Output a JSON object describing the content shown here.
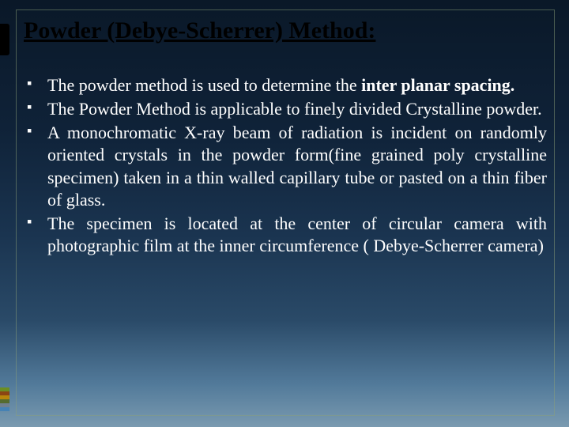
{
  "slide": {
    "title": "Powder (Debye-Scherrer) Method:",
    "bullets": [
      {
        "pre": "The powder method is used to determine the ",
        "bold": "inter planar spacing.",
        "post": ""
      },
      {
        "pre": "The Powder Method is applicable to finely divided Crystalline powder.",
        "bold": "",
        "post": ""
      },
      {
        "pre": "A monochromatic X-ray beam of radiation is incident on randomly oriented crystals in the powder form(fine grained poly crystalline specimen) taken in a thin walled capillary tube or pasted on a thin fiber of glass.",
        "bold": "",
        "post": ""
      },
      {
        "pre": "The specimen is located at the center of circular camera with photographic film at the inner circumference ( Debye-Scherrer camera)",
        "bold": "",
        "post": ""
      }
    ]
  },
  "deco": {
    "stripe_colors": [
      "#6b8e23",
      "#8b4513",
      "#b8860b",
      "#556b2f",
      "#708090",
      "#4682b4"
    ]
  },
  "style": {
    "title_color": "#000000",
    "text_color": "#ffffff",
    "title_fontsize": 30,
    "body_fontsize": 22
  }
}
